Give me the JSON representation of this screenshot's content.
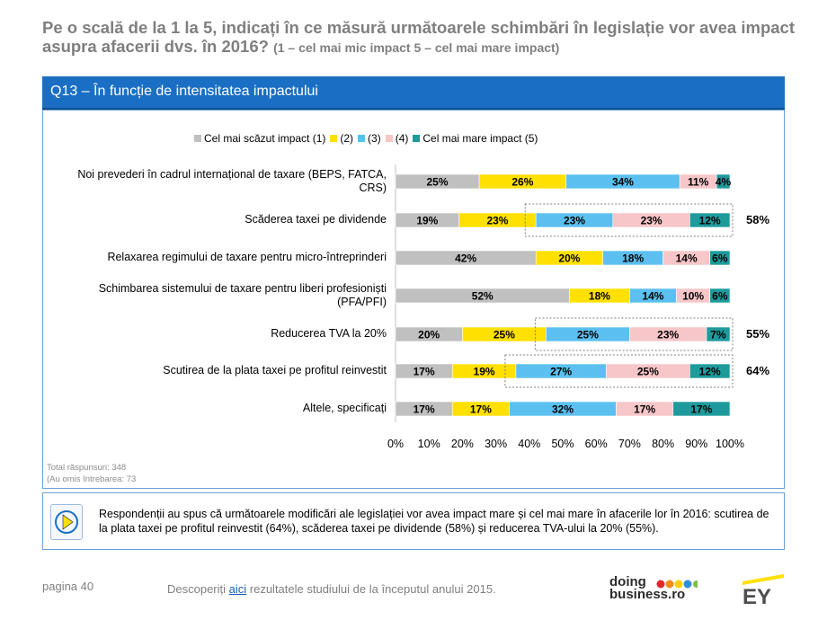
{
  "header": {
    "title_main": "Pe o scală de la 1 la 5, indicați în ce măsură următoarele schimbări în legislație vor avea impact asupra afacerii dvs. în 2016?",
    "title_sub": "(1 – cel mai mic impact 5 – cel mai mare impact)"
  },
  "banner": {
    "label": "Q13 – În funcție de intensitatea impactului"
  },
  "chart_data": {
    "type": "bar",
    "orientation": "horizontal-stacked-100",
    "title": "",
    "legend": [
      "Cel mai scăzut impact (1)",
      "(2)",
      "(3)",
      "(4)",
      "Cel mai mare impact (5)"
    ],
    "legend_position": "top",
    "colors": [
      "#c0c0c0",
      "#ffe000",
      "#5bc0f0",
      "#f7c6c8",
      "#1f9a9c"
    ],
    "categories": [
      "Noi prevederi în cadrul internațional de taxare (BEPS, FATCA, CRS)",
      "Scăderea taxei pe dividende",
      "Relaxarea regimului de taxare pentru micro-întreprinderi",
      "Schimbarea sistemului de taxare pentru liberi profesioniști (PFA/PFI)",
      "Reducerea TVA la 20%",
      "Scutirea de la plata taxei pe profitul reinvestit",
      "Altele, specificați"
    ],
    "series": [
      {
        "name": "Cel mai scăzut impact (1)",
        "values": [
          25,
          19,
          42,
          52,
          20,
          17,
          17
        ]
      },
      {
        "name": "(2)",
        "values": [
          26,
          23,
          20,
          18,
          25,
          19,
          17
        ]
      },
      {
        "name": "(3)",
        "values": [
          34,
          23,
          18,
          14,
          25,
          27,
          32
        ]
      },
      {
        "name": "(4)",
        "values": [
          11,
          23,
          14,
          10,
          23,
          25,
          17
        ]
      },
      {
        "name": "Cel mai mare impact (5)",
        "values": [
          4,
          12,
          6,
          6,
          7,
          12,
          17
        ]
      }
    ],
    "xlim": [
      0,
      100
    ],
    "xticks": [
      "0%",
      "10%",
      "20%",
      "30%",
      "40%",
      "50%",
      "60%",
      "70%",
      "80%",
      "90%",
      "100%"
    ],
    "annotations": [
      {
        "category_index": 1,
        "label": "58%",
        "from_series": 2
      },
      {
        "category_index": 4,
        "label": "55%",
        "from_series": 2
      },
      {
        "category_index": 5,
        "label": "64%",
        "from_series": 2
      }
    ]
  },
  "footnote": {
    "total": "Total răspunsuri: 348",
    "omitted": "(Au omis întrebarea: 73"
  },
  "summary": {
    "text": "Respondenții au spus că următoarele modificări ale legislației vor avea impact mare și cel mai mare în afacerile lor în 2016: scutirea de la plata taxei pe profitul reinvestit (64%), scăderea taxei pe dividende (58%) și reducerea TVA-ului la 20% (55%)."
  },
  "footer": {
    "page": "pagina 40",
    "discover_before": "Descoperiți ",
    "discover_link": "aici",
    "discover_after": " rezultatele studiului de la începutul anului 2015.",
    "brand_line1": "doing",
    "brand_line2": "business.ro",
    "ey_logo": "EY"
  }
}
